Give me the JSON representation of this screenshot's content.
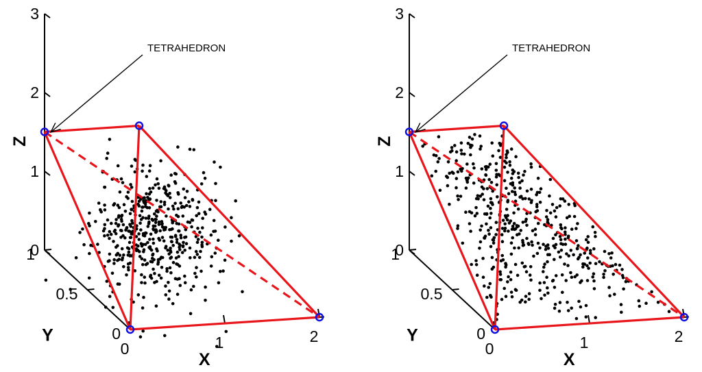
{
  "chart_data": [
    {
      "type": "scatter",
      "projection": "3d",
      "xlabel": "X",
      "ylabel": "Y",
      "zlabel": "Z",
      "xlim": [
        0,
        2
      ],
      "ylim": [
        0,
        1
      ],
      "zlim": [
        0,
        3
      ],
      "x_ticks": [
        "0",
        "1",
        "2"
      ],
      "y_ticks": [
        "0",
        "0.5",
        "1"
      ],
      "z_ticks": [
        "0",
        "1",
        "2",
        "3"
      ],
      "annotation": "TETRAHEDRON",
      "points_distribution": "clustered near the tetrahedron centroid",
      "approx_point_count": 500,
      "tetrahedron_vertices": [
        {
          "x": 0,
          "y": 0,
          "z": 0
        },
        {
          "x": 2,
          "y": 0,
          "z": 0
        },
        {
          "x": 1,
          "y": 1,
          "z": 1.5
        },
        {
          "x": 0,
          "y": 1,
          "z": 1.5
        }
      ],
      "colors": {
        "edges": "#e8151b",
        "vertices": "#1010e0",
        "points": "#000000"
      }
    },
    {
      "type": "scatter",
      "projection": "3d",
      "xlabel": "X",
      "ylabel": "Y",
      "zlabel": "Z",
      "xlim": [
        0,
        2
      ],
      "ylim": [
        0,
        1
      ],
      "zlim": [
        0,
        3
      ],
      "x_ticks": [
        "0",
        "1",
        "2"
      ],
      "y_ticks": [
        "0",
        "0.5",
        "1"
      ],
      "z_ticks": [
        "0",
        "1",
        "2",
        "3"
      ],
      "annotation": "TETRAHEDRON",
      "points_distribution": "uniform inside the tetrahedron",
      "approx_point_count": 500,
      "tetrahedron_vertices": [
        {
          "x": 0,
          "y": 0,
          "z": 0
        },
        {
          "x": 2,
          "y": 0,
          "z": 0
        },
        {
          "x": 1,
          "y": 1,
          "z": 1.5
        },
        {
          "x": 0,
          "y": 1,
          "z": 1.5
        }
      ],
      "colors": {
        "edges": "#e8151b",
        "vertices": "#1010e0",
        "points": "#000000"
      }
    }
  ]
}
